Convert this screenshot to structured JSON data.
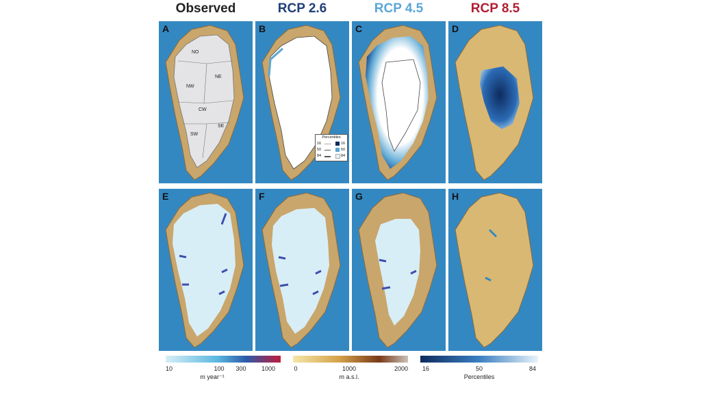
{
  "columns": [
    {
      "title": "Observed",
      "color": "#222222"
    },
    {
      "title": "RCP 2.6",
      "color": "#1f3e7a"
    },
    {
      "title": "RCP 4.5",
      "color": "#5aa6d8"
    },
    {
      "title": "RCP 8.5",
      "color": "#b01e32"
    }
  ],
  "panels": [
    "A",
    "B",
    "C",
    "D",
    "E",
    "F",
    "G",
    "H"
  ],
  "regions": [
    "NO",
    "NE",
    "NW",
    "CW",
    "SE",
    "SW"
  ],
  "legend": {
    "title": "Percentiles",
    "rows": [
      {
        "left": "16",
        "right": "16",
        "swatch": "#0e2b5e"
      },
      {
        "left": "50",
        "right": "50",
        "swatch": "#5ba7d3"
      },
      {
        "left": "84",
        "right": "84",
        "swatch": "#e6f1f8"
      }
    ]
  },
  "colorbars": [
    {
      "name": "velocity",
      "ticks": [
        "10",
        "100",
        "300",
        "1000"
      ],
      "label": "m year⁻¹",
      "stops": [
        "#d7eef7",
        "#5ab8e0",
        "#2c5aa8",
        "#c01c3b"
      ]
    },
    {
      "name": "elevation",
      "ticks": [
        "0",
        "1000",
        "2000"
      ],
      "label": "m a.s.l.",
      "stops": [
        "#f4e7a8",
        "#d5a24a",
        "#7a3a18",
        "#c9c2b8"
      ]
    },
    {
      "name": "percentiles",
      "ticks": [
        "16",
        "50",
        "84"
      ],
      "label": "Percentiles",
      "stops": [
        "#0e2b5e",
        "#3b7fc1",
        "#e9f3fa"
      ]
    }
  ]
}
